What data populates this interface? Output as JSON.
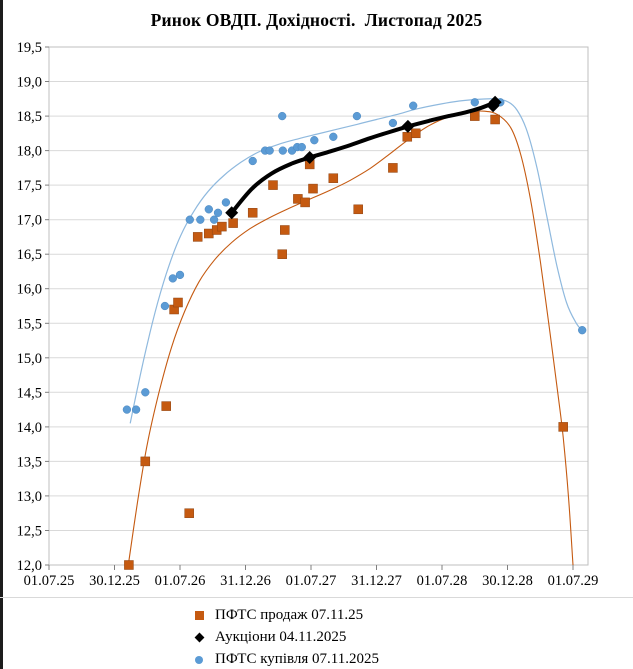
{
  "title": "Ринок ОВДП. Дохідності.  Листопад 2025",
  "chart_data": {
    "type": "scatter",
    "title": "Ринок ОВДП. Дохідності.  Листопад 2025",
    "x_axis": {
      "tick_labels": [
        "01.07.25",
        "30.12.25",
        "01.07.26",
        "31.12.26",
        "01.07.27",
        "31.12.27",
        "01.07.28",
        "30.12.28",
        "01.07.29"
      ],
      "note": "point x values are in half-year tick units: 0 = 01.07.25, 8 = 01.07.29"
    },
    "y_axis": {
      "min": 12.0,
      "max": 19.5,
      "step": 0.5,
      "tick_labels": [
        "19,5",
        "19,0",
        "18,5",
        "18,0",
        "17,5",
        "17,0",
        "16,5",
        "16,0",
        "15,5",
        "15,0",
        "14,5",
        "14,0",
        "13,5",
        "13,0",
        "12,5",
        "12,0"
      ]
    },
    "grid": true,
    "legend_position": "bottom",
    "series": [
      {
        "name": "ПФТС продаж 07.11.25",
        "marker": "square",
        "color": "#C55A11",
        "trend_color": "#C55A11",
        "points": [
          [
            1.22,
            12.0
          ],
          [
            1.47,
            13.5
          ],
          [
            1.79,
            14.3
          ],
          [
            1.91,
            15.7
          ],
          [
            1.97,
            15.8
          ],
          [
            2.14,
            12.75
          ],
          [
            2.27,
            16.75
          ],
          [
            2.44,
            16.8
          ],
          [
            2.56,
            16.85
          ],
          [
            2.64,
            16.9
          ],
          [
            2.81,
            16.95
          ],
          [
            3.11,
            17.1
          ],
          [
            3.42,
            17.5
          ],
          [
            3.56,
            16.5
          ],
          [
            3.6,
            16.85
          ],
          [
            3.8,
            17.3
          ],
          [
            3.91,
            17.25
          ],
          [
            3.98,
            17.8
          ],
          [
            4.03,
            17.45
          ],
          [
            4.34,
            17.6
          ],
          [
            4.72,
            17.15
          ],
          [
            5.25,
            17.75
          ],
          [
            5.47,
            18.2
          ],
          [
            5.6,
            18.25
          ],
          [
            6.5,
            18.5
          ],
          [
            6.81,
            18.45
          ],
          [
            7.85,
            14.0
          ]
        ],
        "trend": [
          [
            1.21,
            12.0
          ],
          [
            1.35,
            12.9
          ],
          [
            1.5,
            13.75
          ],
          [
            1.68,
            14.5
          ],
          [
            1.87,
            15.15
          ],
          [
            2.07,
            15.67
          ],
          [
            2.29,
            16.1
          ],
          [
            2.53,
            16.42
          ],
          [
            2.79,
            16.67
          ],
          [
            3.07,
            16.87
          ],
          [
            3.37,
            17.03
          ],
          [
            3.68,
            17.17
          ],
          [
            3.99,
            17.3
          ],
          [
            4.3,
            17.43
          ],
          [
            4.6,
            17.57
          ],
          [
            4.9,
            17.74
          ],
          [
            5.2,
            17.95
          ],
          [
            5.5,
            18.17
          ],
          [
            5.8,
            18.36
          ],
          [
            6.1,
            18.49
          ],
          [
            6.4,
            18.56
          ],
          [
            6.65,
            18.57
          ],
          [
            6.85,
            18.52
          ],
          [
            7.05,
            18.33
          ],
          [
            7.2,
            17.95
          ],
          [
            7.35,
            17.3
          ],
          [
            7.5,
            16.4
          ],
          [
            7.65,
            15.35
          ],
          [
            7.78,
            14.4
          ],
          [
            7.85,
            13.85
          ],
          [
            7.93,
            13.0
          ],
          [
            8.0,
            12.0
          ]
        ]
      },
      {
        "name": "Аукціони 04.11.2025",
        "marker": "diamond",
        "color": "#000000",
        "trend_color": "#000000",
        "points": [
          [
            2.79,
            17.1
          ],
          [
            3.98,
            17.9
          ],
          [
            5.48,
            18.35
          ],
          [
            6.78,
            18.65
          ],
          [
            6.81,
            18.7
          ]
        ],
        "trend": [
          [
            2.79,
            17.1
          ],
          [
            3.1,
            17.45
          ],
          [
            3.4,
            17.67
          ],
          [
            3.7,
            17.81
          ],
          [
            3.98,
            17.9
          ],
          [
            4.3,
            17.99
          ],
          [
            4.6,
            18.08
          ],
          [
            4.9,
            18.18
          ],
          [
            5.2,
            18.27
          ],
          [
            5.48,
            18.35
          ],
          [
            5.8,
            18.43
          ],
          [
            6.1,
            18.5
          ],
          [
            6.35,
            18.55
          ],
          [
            6.6,
            18.62
          ],
          [
            6.81,
            18.7
          ]
        ]
      },
      {
        "name": "ПФТС купівля 07.11.2025",
        "marker": "circle",
        "color": "#5B9BD5",
        "trend_color": "#8FB9DE",
        "points": [
          [
            1.19,
            14.25
          ],
          [
            1.33,
            14.25
          ],
          [
            1.47,
            14.5
          ],
          [
            1.77,
            15.75
          ],
          [
            1.89,
            16.15
          ],
          [
            2.0,
            16.2
          ],
          [
            2.15,
            17.0
          ],
          [
            2.31,
            17.0
          ],
          [
            2.44,
            17.15
          ],
          [
            2.52,
            17.0
          ],
          [
            2.58,
            17.1
          ],
          [
            2.7,
            17.25
          ],
          [
            3.11,
            17.85
          ],
          [
            3.3,
            18.0
          ],
          [
            3.37,
            18.0
          ],
          [
            3.56,
            18.5
          ],
          [
            3.57,
            18.0
          ],
          [
            3.71,
            18.0
          ],
          [
            3.79,
            18.05
          ],
          [
            3.86,
            18.05
          ],
          [
            4.05,
            18.15
          ],
          [
            4.34,
            18.2
          ],
          [
            4.7,
            18.5
          ],
          [
            5.25,
            18.4
          ],
          [
            5.56,
            18.65
          ],
          [
            6.5,
            18.7
          ],
          [
            6.89,
            18.7
          ],
          [
            8.14,
            15.4
          ]
        ],
        "trend": [
          [
            1.24,
            14.05
          ],
          [
            1.36,
            14.6
          ],
          [
            1.5,
            15.2
          ],
          [
            1.66,
            15.8
          ],
          [
            1.83,
            16.33
          ],
          [
            2.01,
            16.77
          ],
          [
            2.21,
            17.12
          ],
          [
            2.43,
            17.41
          ],
          [
            2.67,
            17.64
          ],
          [
            2.93,
            17.83
          ],
          [
            3.2,
            17.98
          ],
          [
            3.5,
            18.09
          ],
          [
            3.8,
            18.17
          ],
          [
            4.1,
            18.24
          ],
          [
            4.4,
            18.31
          ],
          [
            4.7,
            18.38
          ],
          [
            5.0,
            18.45
          ],
          [
            5.3,
            18.52
          ],
          [
            5.6,
            18.6
          ],
          [
            5.9,
            18.66
          ],
          [
            6.2,
            18.71
          ],
          [
            6.5,
            18.74
          ],
          [
            6.8,
            18.75
          ],
          [
            7.0,
            18.71
          ],
          [
            7.15,
            18.58
          ],
          [
            7.3,
            18.28
          ],
          [
            7.45,
            17.75
          ],
          [
            7.6,
            17.05
          ],
          [
            7.75,
            16.35
          ],
          [
            7.9,
            15.8
          ],
          [
            8.05,
            15.5
          ],
          [
            8.14,
            15.4
          ]
        ]
      }
    ],
    "colors": {
      "gridline": "#D9D9D9",
      "plot_border": "#BFBFBF",
      "tick": "#7F7F7F",
      "axis_text": "#000000",
      "page_edge": "#1C1C1C"
    }
  }
}
